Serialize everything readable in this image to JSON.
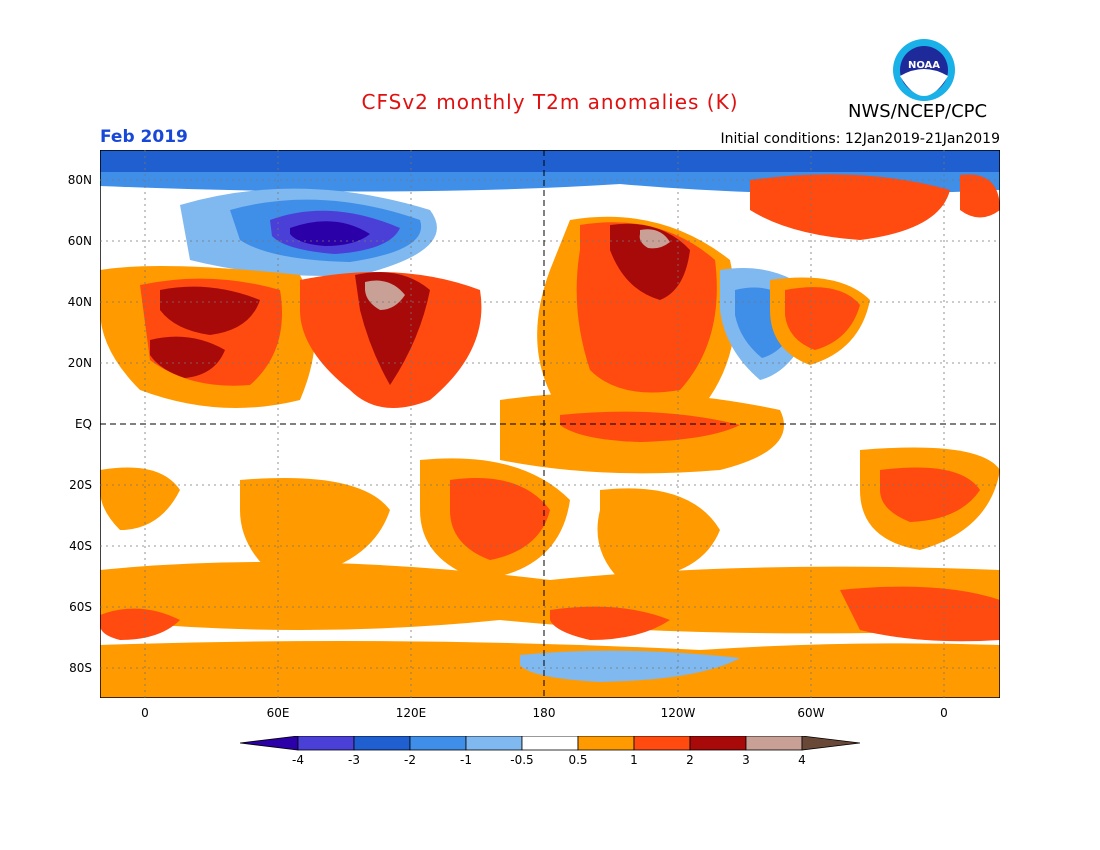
{
  "header": {
    "title": "CFSv2 monthly T2m anomalies (K)",
    "agency": "NWS/NCEP/CPC",
    "logo_text": "NOAA",
    "month": "Feb 2019",
    "initial_conditions": "Initial conditions: 12Jan2019-21Jan2019",
    "title_color": "#e01010",
    "month_color": "#1848d8"
  },
  "map": {
    "lat_labels": [
      "80N",
      "60N",
      "40N",
      "20N",
      "EQ",
      "20S",
      "40S",
      "60S",
      "80S"
    ],
    "lon_labels": [
      "0",
      "60E",
      "120E",
      "180",
      "120W",
      "60W",
      "0"
    ]
  },
  "legend": {
    "tick_labels": [
      "-4",
      "-3",
      "-2",
      "-1",
      "-0.5",
      "0.5",
      "1",
      "2",
      "3",
      "4"
    ],
    "colors": [
      "#2c00a8",
      "#4a3fd6",
      "#1f5fd0",
      "#3f8ee8",
      "#80b8f0",
      "#ffffff",
      "#ff9a00",
      "#ff4a10",
      "#a80a0a",
      "#c8a096",
      "#6a4838"
    ]
  }
}
